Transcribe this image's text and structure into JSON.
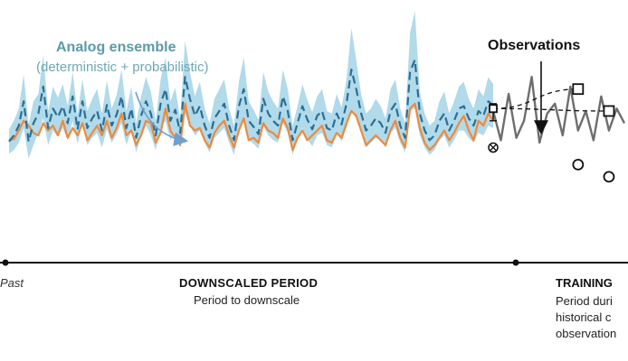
{
  "labels": {
    "ensemble_title": "Analog ensemble",
    "ensemble_subtitle": "(deterministic + probabilistic)",
    "observations": "Observations",
    "past": "Past",
    "downscaled_title": "DOWNSCALED PERIOD",
    "downscaled_subtitle": "Period to downscale",
    "training_title": "TRAINING",
    "training_subtitle_lines": [
      "Period duri",
      "historical c",
      "observation"
    ]
  },
  "colors": {
    "ensemble_band": "#a9d6e8",
    "ensemble_mean": "#2a6f96",
    "downscaled_series": "#ee8a3c",
    "observed_series": "#6e6e6e",
    "label_teal": "#5b9ba7",
    "axis": "#111111"
  },
  "series": {
    "down_len": 100,
    "train_len": 18,
    "mean": [
      95,
      100,
      108,
      128,
      95,
      110,
      118,
      140,
      106,
      122,
      115,
      124,
      110,
      132,
      105,
      128,
      106,
      114,
      120,
      104,
      125,
      108,
      117,
      132,
      106,
      122,
      98,
      116,
      128,
      118,
      100,
      126,
      138,
      112,
      121,
      102,
      148,
      130,
      116,
      124,
      108,
      98,
      114,
      120,
      126,
      108,
      96,
      124,
      138,
      112,
      107,
      101,
      130,
      118,
      112,
      108,
      132,
      120,
      96,
      110,
      124,
      113,
      105,
      116,
      120,
      106,
      104,
      118,
      109,
      126,
      154,
      138,
      118,
      104,
      108,
      114,
      110,
      102,
      120,
      126,
      108,
      98,
      152,
      162,
      118,
      104,
      96,
      100,
      112,
      118,
      104,
      112,
      122,
      124,
      114,
      108,
      120,
      116,
      128,
      124
    ],
    "spread": [
      10,
      12,
      14,
      22,
      14,
      18,
      16,
      26,
      14,
      18,
      16,
      18,
      14,
      20,
      12,
      18,
      14,
      16,
      18,
      14,
      20,
      14,
      16,
      22,
      14,
      18,
      12,
      16,
      20,
      18,
      12,
      20,
      26,
      16,
      18,
      12,
      30,
      22,
      16,
      20,
      14,
      12,
      16,
      18,
      20,
      14,
      12,
      20,
      26,
      16,
      14,
      12,
      22,
      18,
      16,
      14,
      22,
      18,
      12,
      14,
      18,
      16,
      14,
      16,
      18,
      14,
      14,
      16,
      14,
      20,
      34,
      24,
      16,
      14,
      14,
      16,
      14,
      12,
      18,
      20,
      14,
      12,
      32,
      40,
      18,
      14,
      12,
      12,
      16,
      18,
      14,
      16,
      18,
      20,
      16,
      14,
      18,
      16,
      20,
      18
    ],
    "downscaled": [
      96,
      97,
      104,
      112,
      108,
      102,
      100,
      110,
      104,
      108,
      100,
      112,
      98,
      106,
      100,
      110,
      96,
      102,
      108,
      100,
      112,
      98,
      106,
      118,
      100,
      104,
      92,
      100,
      112,
      110,
      94,
      102,
      122,
      104,
      98,
      92,
      126,
      108,
      104,
      106,
      96,
      90,
      102,
      108,
      112,
      100,
      90,
      104,
      114,
      96,
      98,
      94,
      110,
      104,
      102,
      98,
      114,
      106,
      88,
      98,
      104,
      96,
      100,
      104,
      108,
      96,
      94,
      102,
      98,
      110,
      120,
      116,
      104,
      92,
      96,
      100,
      96,
      92,
      104,
      112,
      98,
      90,
      122,
      126,
      106,
      94,
      88,
      92,
      98,
      104,
      96,
      102,
      110,
      116,
      104,
      96,
      112,
      108,
      118,
      112
    ],
    "observed": [
      120,
      96,
      134,
      98,
      112,
      148,
      94,
      118,
      126,
      100,
      140,
      104,
      120,
      96,
      132,
      104,
      122,
      110
    ],
    "obs_error_bar": [
      112,
      126
    ],
    "obs_points": [
      {
        "i": 0,
        "y": 122,
        "marker": "square"
      },
      {
        "i": 0,
        "y": 90,
        "marker": "circled-x"
      },
      {
        "i": 11,
        "y": 138,
        "marker": "square"
      },
      {
        "i": 11,
        "y": 76,
        "marker": "circle"
      },
      {
        "i": 15,
        "y": 120,
        "marker": "square"
      },
      {
        "i": 15,
        "y": 66,
        "marker": "circle"
      }
    ]
  }
}
